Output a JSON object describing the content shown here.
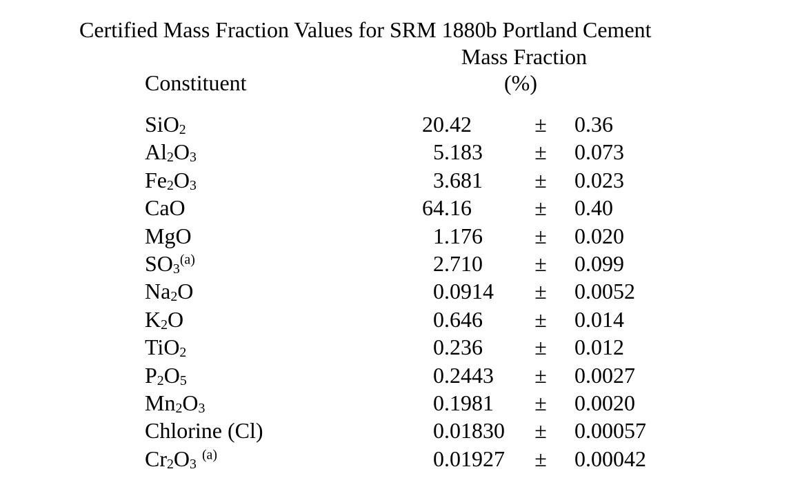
{
  "title": "Certified Mass Fraction Values for SRM 1880b Portland Cement",
  "colors": {
    "text": "#000000",
    "background": "#ffffff"
  },
  "table": {
    "column_headers": {
      "constituent": "Constituent",
      "mass_fraction_line1": "Mass Fraction",
      "mass_fraction_line2": "(%)"
    },
    "pm_symbol": "±",
    "rows": [
      {
        "constituent": "SiO2",
        "constituent_parts": [
          {
            "t": "SiO"
          },
          {
            "t": "2",
            "s": "sub"
          }
        ],
        "value": "20.42",
        "uncertainty": "0.36"
      },
      {
        "constituent": "Al2O3",
        "constituent_parts": [
          {
            "t": "Al"
          },
          {
            "t": "2",
            "s": "sub"
          },
          {
            "t": "O"
          },
          {
            "t": "3",
            "s": "sub"
          }
        ],
        "value": "5.183",
        "uncertainty": "0.073"
      },
      {
        "constituent": "Fe2O3",
        "constituent_parts": [
          {
            "t": "Fe"
          },
          {
            "t": "2",
            "s": "sub"
          },
          {
            "t": "O"
          },
          {
            "t": "3",
            "s": "sub"
          }
        ],
        "value": "3.681",
        "uncertainty": "0.023"
      },
      {
        "constituent": "CaO",
        "constituent_parts": [
          {
            "t": "CaO"
          }
        ],
        "value": "64.16",
        "uncertainty": "0.40"
      },
      {
        "constituent": "MgO",
        "constituent_parts": [
          {
            "t": "MgO"
          }
        ],
        "value": "1.176",
        "uncertainty": "0.020"
      },
      {
        "constituent": "SO3(a)",
        "constituent_parts": [
          {
            "t": "SO"
          },
          {
            "t": "3",
            "s": "sub"
          },
          {
            "t": "(a)",
            "s": "sup"
          }
        ],
        "value": "2.710",
        "uncertainty": "0.099"
      },
      {
        "constituent": "Na2O",
        "constituent_parts": [
          {
            "t": "Na"
          },
          {
            "t": "2",
            "s": "sub"
          },
          {
            "t": "O"
          }
        ],
        "value": "0.0914",
        "uncertainty": "0.0052"
      },
      {
        "constituent": "K2O",
        "constituent_parts": [
          {
            "t": "K"
          },
          {
            "t": "2",
            "s": "sub"
          },
          {
            "t": "O"
          }
        ],
        "value": "0.646",
        "uncertainty": "0.014"
      },
      {
        "constituent": "TiO2",
        "constituent_parts": [
          {
            "t": "TiO"
          },
          {
            "t": "2",
            "s": "sub"
          }
        ],
        "value": "0.236",
        "uncertainty": "0.012"
      },
      {
        "constituent": "P2O5",
        "constituent_parts": [
          {
            "t": "P"
          },
          {
            "t": "2",
            "s": "sub"
          },
          {
            "t": "O"
          },
          {
            "t": "5",
            "s": "sub"
          }
        ],
        "value": "0.2443",
        "uncertainty": "0.0027"
      },
      {
        "constituent": "Mn2O3",
        "constituent_parts": [
          {
            "t": "Mn"
          },
          {
            "t": "2",
            "s": "sub"
          },
          {
            "t": "O"
          },
          {
            "t": "3",
            "s": "sub"
          }
        ],
        "value": "0.1981",
        "uncertainty": "0.0020"
      },
      {
        "constituent": "Chlorine (Cl)",
        "constituent_parts": [
          {
            "t": "Chlorine (Cl)"
          }
        ],
        "value": "0.01830",
        "uncertainty": "0.00057"
      },
      {
        "constituent": "Cr2O3 (a)",
        "constituent_parts": [
          {
            "t": "Cr"
          },
          {
            "t": "2",
            "s": "sub"
          },
          {
            "t": "O"
          },
          {
            "t": "3",
            "s": "sub"
          },
          {
            "t": " "
          },
          {
            "t": "(a)",
            "s": "sup"
          }
        ],
        "value": "0.01927",
        "uncertainty": "0.00042"
      }
    ]
  }
}
